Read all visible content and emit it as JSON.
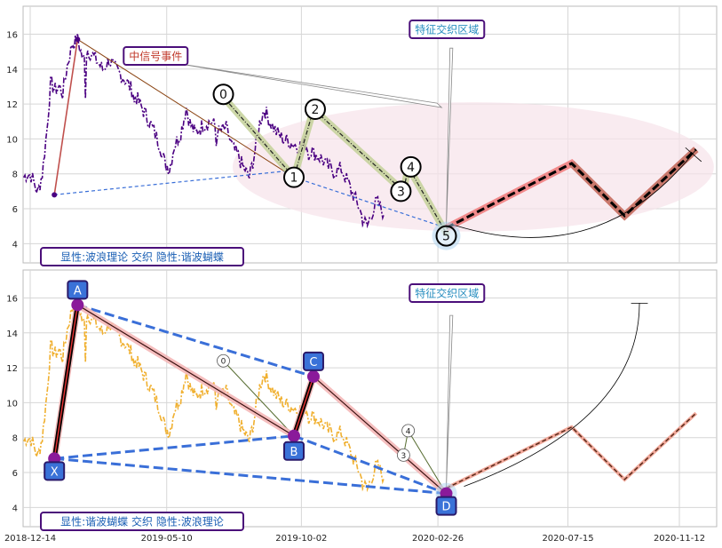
{
  "chart_data": [
    {
      "type": "line",
      "panel": "top",
      "ylim": [
        2.9,
        17.6
      ],
      "yticks": [
        4,
        6,
        8,
        10,
        12,
        14,
        16
      ],
      "grid": true,
      "title_box": "特征交织区域",
      "event_box": "中信号事件",
      "caption": "显性:波浪理论 交织 隐性:谐波蝴蝶",
      "wave_points": [
        {
          "label": "",
          "date": "2019-01-09",
          "y": 6.8
        },
        {
          "label": "",
          "date": "2019-02-03",
          "y": 15.7
        },
        {
          "label": "0",
          "date": "2019-07-10",
          "y": 12.4
        },
        {
          "label": "1",
          "date": "2019-09-24",
          "y": 7.8
        },
        {
          "label": "2",
          "date": "2019-10-15",
          "y": 11.7
        },
        {
          "label": "3",
          "date": "2020-01-20",
          "y": 7.0
        },
        {
          "label": "4",
          "date": "2020-01-25",
          "y": 8.4
        },
        {
          "label": "5",
          "date": "2020-03-06",
          "y": 4.6
        }
      ],
      "projection": [
        {
          "date": "2020-03-06",
          "y": 4.9
        },
        {
          "date": "2020-07-19",
          "y": 8.6
        },
        {
          "date": "2020-09-14",
          "y": 5.6
        },
        {
          "date": "2020-11-30",
          "y": 9.4
        }
      ]
    },
    {
      "type": "line",
      "panel": "bottom",
      "ylim": [
        2.9,
        17.6
      ],
      "yticks": [
        4,
        6,
        8,
        10,
        12,
        14,
        16
      ],
      "grid": true,
      "title_box": "特征交织区域",
      "caption": "显性:谐波蝴蝶 交织 隐性:波浪理论",
      "xtick_labels": [
        "2018-12-14",
        "2019-05-10",
        "2019-10-02",
        "2020-02-26",
        "2020-07-15",
        "2020-11-12"
      ],
      "harmonic_points": [
        {
          "label": "X",
          "date": "2019-01-09",
          "y": 6.8
        },
        {
          "label": "A",
          "date": "2019-02-03",
          "y": 15.6
        },
        {
          "label": "B",
          "date": "2019-09-24",
          "y": 8.1
        },
        {
          "label": "C",
          "date": "2019-10-15",
          "y": 11.5
        },
        {
          "label": "D",
          "date": "2020-03-06",
          "y": 4.8
        }
      ],
      "minor_points": [
        {
          "label": "0",
          "date": "2019-07-10",
          "y": 12.4
        },
        {
          "label": "3",
          "date": "2020-01-20",
          "y": 7.0
        },
        {
          "label": "4",
          "date": "2020-01-25",
          "y": 8.4
        }
      ],
      "projection": [
        {
          "date": "2020-03-06",
          "y": 5.1
        },
        {
          "date": "2020-07-19",
          "y": 8.6
        },
        {
          "date": "2020-09-14",
          "y": 5.6
        },
        {
          "date": "2020-11-30",
          "y": 9.4
        }
      ]
    }
  ]
}
